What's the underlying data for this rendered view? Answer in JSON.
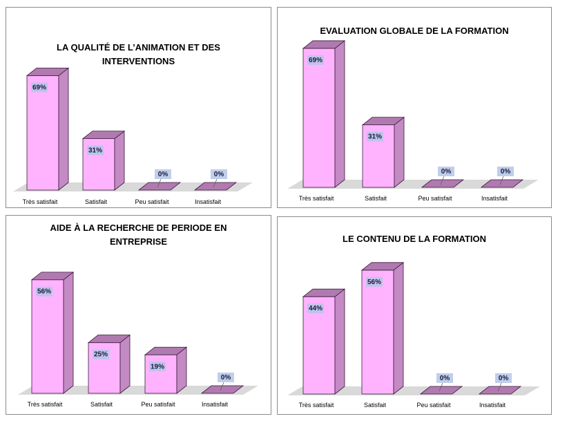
{
  "chart_data": [
    {
      "type": "bar",
      "title": "LA QUALITÉ DE L’ANIMATION ET DES INTERVENTIONS",
      "categories": [
        "Très satisfait",
        "Satisfait",
        "Peu satisfait",
        "Insatisfait"
      ],
      "values": [
        69,
        31,
        0,
        0
      ],
      "data_labels": [
        "69%",
        "31%",
        "0%",
        "0%"
      ],
      "ylim": [
        0,
        70
      ],
      "grid": false,
      "legend": "none"
    },
    {
      "type": "bar",
      "title": "EVALUATION GLOBALE DE LA FORMATION",
      "categories": [
        "Très satisfait",
        "Satisfait",
        "Peu satisfait",
        "Insatisfait"
      ],
      "values": [
        69,
        31,
        0,
        0
      ],
      "data_labels": [
        "69%",
        "31%",
        "0%",
        "0%"
      ],
      "ylim": [
        0,
        70
      ],
      "grid": false,
      "legend": "none"
    },
    {
      "type": "bar",
      "title": "AIDE À LA RECHERCHE DE PERIODE EN ENTREPRISE",
      "categories": [
        "Très satisfait",
        "Satisfait",
        "Peu satisfait",
        "Insatisfait"
      ],
      "values": [
        56,
        25,
        19,
        0
      ],
      "data_labels": [
        "56%",
        "25%",
        "19%",
        "0%"
      ],
      "ylim": [
        0,
        60
      ],
      "grid": false,
      "legend": "none"
    },
    {
      "type": "bar",
      "title": "LE CONTENU DE LA FORMATION",
      "categories": [
        "Très satisfait",
        "Satisfait",
        "Peu satisfait",
        "Insatisfait"
      ],
      "values": [
        44,
        56,
        0,
        0
      ],
      "data_labels": [
        "44%",
        "56%",
        "0%",
        "0%"
      ],
      "ylim": [
        0,
        60
      ],
      "grid": false,
      "legend": "none"
    }
  ],
  "colors": {
    "bar_front": "#ffb3ff",
    "bar_side": "#c48ac4",
    "bar_top": "#b07ab0",
    "bar_stroke": "#3a1a3a",
    "floor": "#d9d9d9",
    "label_bg": "#b4c6e7"
  }
}
